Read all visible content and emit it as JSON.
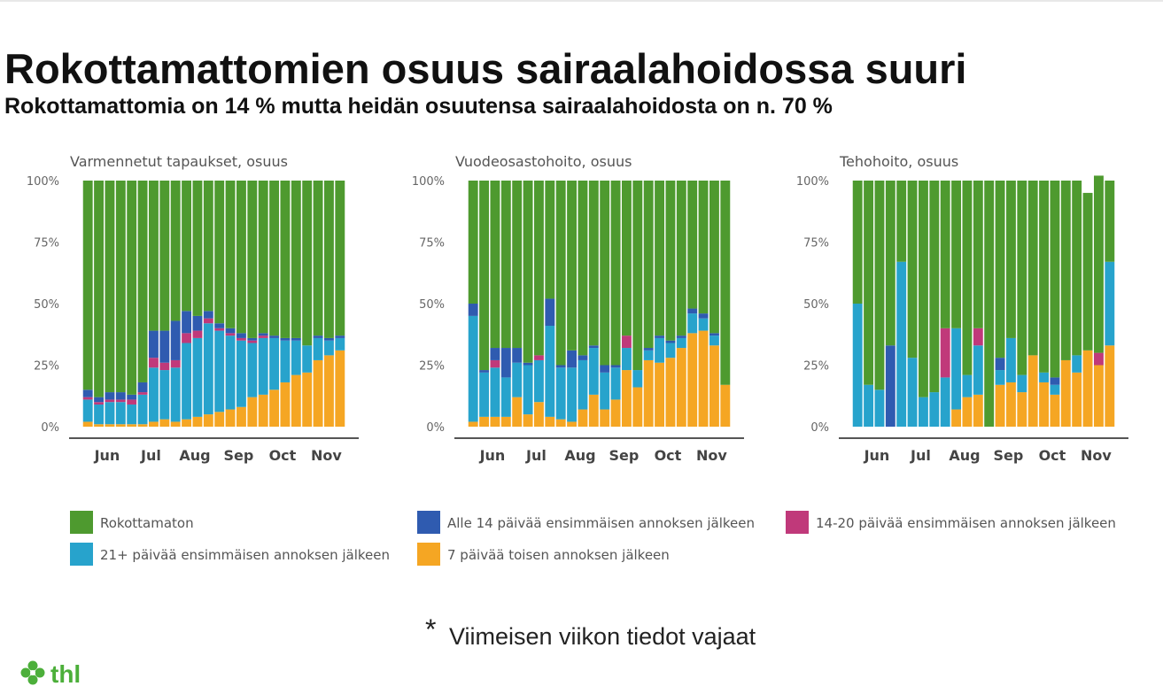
{
  "title": "Rokottamattomien osuus sairaalahoidossa suuri",
  "subtitle": "Rokottamattomia on 14 % mutta heidän osuutensa sairaalahoidosta on n. 70 %",
  "legend": [
    {
      "name": "Rokottamaton",
      "color": "#4e9a2f"
    },
    {
      "name": "Alle 14 päivää ensimmäisen annoksen jälkeen",
      "color": "#2f5bb0"
    },
    {
      "name": "14-20 päivää ensimmäisen annoksen jälkeen",
      "color": "#c0397a"
    },
    {
      "name": "21+ päivää ensimmäisen annoksen jälkeen",
      "color": "#27a3cc"
    },
    {
      "name": "7 päivää toisen annoksen jälkeen",
      "color": "#f5a623"
    }
  ],
  "chart_data": [
    {
      "type": "bar",
      "stacked": true,
      "title": "Varmennetut tapaukset, osuus",
      "categories": [
        null,
        null,
        "Jun",
        null,
        null,
        null,
        "Jul",
        null,
        null,
        null,
        "Aug",
        null,
        null,
        null,
        "Sep",
        null,
        null,
        null,
        "Oct",
        null,
        null,
        null,
        "Nov",
        null
      ],
      "ylim": [
        0,
        100
      ],
      "yticks": [
        {
          "value": 0,
          "label": "0%"
        },
        {
          "value": 25,
          "label": "25%"
        },
        {
          "value": 50,
          "label": "50%"
        },
        {
          "value": 75,
          "label": "75%"
        },
        {
          "value": 100,
          "label": "100%"
        }
      ],
      "series": [
        {
          "values": [
            85,
            88,
            86,
            86,
            87,
            82,
            61,
            61,
            57,
            53,
            55,
            53,
            58,
            60,
            62,
            64,
            62,
            63,
            64,
            64,
            67,
            63,
            64,
            63
          ]
        },
        {
          "values": [
            3,
            2,
            3,
            3,
            2,
            4,
            11,
            13,
            16,
            9,
            6,
            3,
            2,
            2,
            2,
            1,
            1,
            1,
            1,
            1,
            0,
            1,
            1,
            1
          ]
        },
        {
          "values": [
            1,
            1,
            1,
            1,
            2,
            1,
            4,
            3,
            3,
            4,
            3,
            2,
            1,
            1,
            1,
            1,
            1,
            0,
            0,
            0,
            0,
            0,
            0,
            0
          ]
        },
        {
          "values": [
            9,
            8,
            9,
            9,
            8,
            12,
            22,
            20,
            22,
            31,
            32,
            37,
            33,
            30,
            27,
            22,
            23,
            21,
            17,
            14,
            11,
            9,
            6,
            5
          ]
        },
        {
          "values": [
            2,
            1,
            1,
            1,
            1,
            1,
            2,
            3,
            2,
            3,
            4,
            5,
            6,
            7,
            8,
            12,
            13,
            15,
            18,
            21,
            22,
            27,
            29,
            31
          ]
        }
      ]
    },
    {
      "type": "bar",
      "stacked": true,
      "title": "Vuodeosastohoito, osuus",
      "categories": [
        null,
        null,
        "Jun",
        null,
        null,
        null,
        "Jul",
        null,
        null,
        null,
        "Aug",
        null,
        null,
        null,
        "Sep",
        null,
        null,
        null,
        "Oct",
        null,
        null,
        null,
        "Nov",
        null
      ],
      "ylim": [
        0,
        100
      ],
      "yticks": [
        {
          "value": 0,
          "label": "0%"
        },
        {
          "value": 25,
          "label": "25%"
        },
        {
          "value": 50,
          "label": "50%"
        },
        {
          "value": 75,
          "label": "75%"
        },
        {
          "value": 100,
          "label": "100%"
        }
      ],
      "series": [
        {
          "values": [
            50,
            77,
            68,
            68,
            68,
            74,
            71,
            48,
            75,
            69,
            71,
            67,
            75,
            75,
            63,
            77,
            68,
            63,
            65,
            63,
            52,
            54,
            62,
            83
          ]
        },
        {
          "values": [
            5,
            1,
            5,
            12,
            6,
            1,
            0,
            11,
            1,
            7,
            2,
            1,
            3,
            1,
            0,
            0,
            1,
            1,
            1,
            1,
            2,
            2,
            1,
            0
          ]
        },
        {
          "values": [
            0,
            0,
            3,
            0,
            0,
            0,
            2,
            0,
            0,
            0,
            0,
            0,
            0,
            0,
            5,
            0,
            0,
            0,
            0,
            0,
            0,
            0,
            0,
            0
          ]
        },
        {
          "values": [
            43,
            18,
            20,
            16,
            14,
            20,
            17,
            37,
            21,
            22,
            20,
            19,
            15,
            13,
            9,
            7,
            4,
            10,
            6,
            4,
            8,
            5,
            4,
            0
          ]
        },
        {
          "values": [
            2,
            4,
            4,
            4,
            12,
            5,
            10,
            4,
            3,
            2,
            7,
            13,
            7,
            11,
            23,
            16,
            27,
            26,
            28,
            32,
            38,
            39,
            33,
            17
          ]
        }
      ]
    },
    {
      "type": "bar",
      "stacked": true,
      "title": "Tehohoito, osuus",
      "categories": [
        null,
        null,
        "Jun",
        null,
        null,
        null,
        "Jul",
        null,
        null,
        null,
        "Aug",
        null,
        null,
        null,
        "Sep",
        null,
        null,
        null,
        "Oct",
        null,
        null,
        null,
        "Nov",
        null
      ],
      "ylim": [
        0,
        100
      ],
      "yticks": [
        {
          "value": 0,
          "label": "0%"
        },
        {
          "value": 25,
          "label": "25%"
        },
        {
          "value": 50,
          "label": "50%"
        },
        {
          "value": 75,
          "label": "75%"
        },
        {
          "value": 100,
          "label": "100%"
        }
      ],
      "series": [
        {
          "values": [
            50,
            83,
            85,
            67,
            33,
            72,
            88,
            86,
            60,
            60,
            79,
            60,
            100,
            72,
            64,
            79,
            71,
            78,
            80,
            73,
            71,
            64,
            72,
            33
          ]
        },
        {
          "values": [
            0,
            0,
            0,
            33,
            0,
            0,
            0,
            0,
            0,
            0,
            0,
            0,
            0,
            5,
            0,
            0,
            0,
            0,
            3,
            0,
            0,
            0,
            0,
            0
          ]
        },
        {
          "values": [
            0,
            0,
            0,
            0,
            0,
            0,
            0,
            0,
            20,
            0,
            0,
            7,
            0,
            0,
            0,
            0,
            0,
            0,
            0,
            0,
            0,
            0,
            5,
            0
          ]
        },
        {
          "values": [
            50,
            17,
            15,
            0,
            67,
            28,
            12,
            14,
            20,
            33,
            9,
            20,
            0,
            6,
            18,
            7,
            0,
            4,
            4,
            0,
            7,
            0,
            0,
            34
          ]
        },
        {
          "values": [
            0,
            0,
            0,
            0,
            0,
            0,
            0,
            0,
            0,
            7,
            12,
            13,
            0,
            17,
            18,
            14,
            29,
            18,
            13,
            27,
            22,
            31,
            25,
            33
          ]
        }
      ]
    }
  ],
  "footnote_mark": "*",
  "footnote": "Viimeisen viikon tiedot vajaat",
  "logo": "thl"
}
